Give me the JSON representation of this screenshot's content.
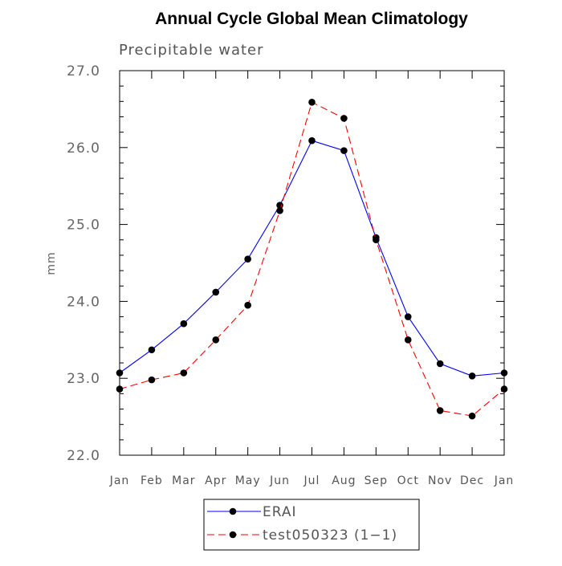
{
  "chart_data": {
    "type": "line",
    "title": "Annual Cycle Global Mean Climatology",
    "subtitle": "Precipitable water",
    "xlabel": "",
    "ylabel": "mm",
    "ylim": [
      22.0,
      27.0
    ],
    "yticks": [
      "22.0",
      "23.0",
      "24.0",
      "25.0",
      "26.0",
      "27.0"
    ],
    "categories": [
      "Jan",
      "Feb",
      "Mar",
      "Apr",
      "May",
      "Jun",
      "Jul",
      "Aug",
      "Sep",
      "Oct",
      "Nov",
      "Dec",
      "Jan"
    ],
    "series": [
      {
        "name": "ERAI",
        "color": "#0000ff",
        "dashed": false,
        "values": [
          23.07,
          23.37,
          23.71,
          24.12,
          24.55,
          25.25,
          26.09,
          25.96,
          24.83,
          23.8,
          23.19,
          23.03,
          23.07
        ]
      },
      {
        "name": "test050323 (1−1)",
        "color": "#ff0000",
        "dashed": true,
        "values": [
          22.86,
          22.98,
          23.07,
          23.5,
          23.95,
          25.18,
          26.59,
          26.38,
          24.8,
          23.5,
          22.58,
          22.51,
          22.86
        ]
      }
    ],
    "legend_position": "bottom"
  }
}
